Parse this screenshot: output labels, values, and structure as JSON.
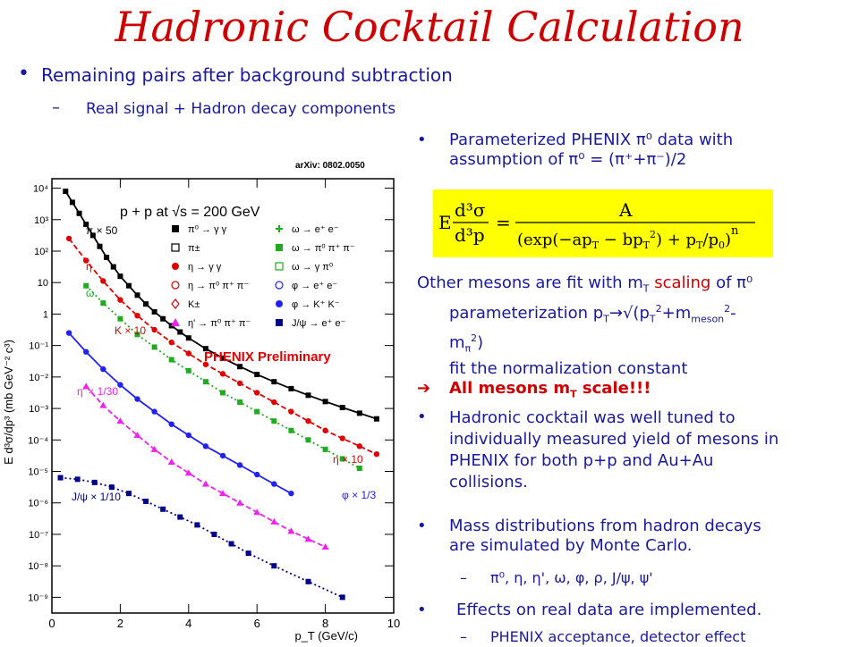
{
  "title": "Hadronic Cocktail Calculation",
  "bullets": {
    "b1": "Remaining pairs after background subtraction",
    "b1a": "Real signal + Hadron decay components",
    "r1_line1": "Parameterized PHENIX π⁰ data with",
    "r1_line2": "assumption of π⁰ = (π⁺+π⁻)/2",
    "r2_line1": "Other mesons are fit with m",
    "r2_line1_sub": "T",
    "r2_line1_b": " scaling",
    "r2_line1_c": " of π⁰",
    "r2_line2": "parameterization  p",
    "r2_line2_sub": "T",
    "r2_line2_b": "→√(p",
    "r2_line2_sub2": "T",
    "r2_line2_sup": "2",
    "r2_line2_c": "+m",
    "r2_line2_sub3": "meson",
    "r2_line2_sup2": "2",
    "r2_line2_d": "-",
    "r2_line3": "m",
    "r2_line3_sub": "π",
    "r2_line3_sup": "2",
    "r2_line3_b": ")",
    "r2_line4": "fit the normalization constant",
    "r3": "All mesons m",
    "r3_sub": "T",
    "r3_b": " scale!!!",
    "r4_line1": "Hadronic cocktail was well tuned to",
    "r4_line2": "individually measured yield of mesons in",
    "r4_line3": "PHENIX for both p+p and Au+Au",
    "r4_line4": "collisions.",
    "r5_line1": "Mass distributions from hadron decays",
    "r5_line2": "are simulated by Monte Carlo.",
    "r5a": "π⁰, η, η', ω, φ, ρ, J/ψ, ψ'",
    "r6": "Effects on real data are implemented.",
    "r6a": "PHENIX acceptance, detector effect"
  },
  "formula": {
    "lhs_num": "d³σ",
    "lhs_den": "d³p",
    "lhs_prefix": "E",
    "eq": "=",
    "rhs_num": "A",
    "rhs_den": "(exp(−ap",
    "rhs_den_sub": "T",
    "rhs_den_b": " − bp",
    "rhs_den_sub2": "T",
    "rhs_den_sup": "2",
    "rhs_den_c": ") + p",
    "rhs_den_sub3": "T",
    "rhs_den_d": "/p",
    "rhs_den_sub4": "0",
    "rhs_den_e": ")",
    "rhs_exp": "n"
  },
  "arxiv": "arXiv: 0802.0050",
  "chart_data": {
    "type": "scatter",
    "title": "p + p at √s = 200 GeV",
    "xlabel": "p_T (GeV/c)",
    "ylabel": "E d³σ/dp³ (mb GeV⁻² c³)",
    "xlim": [
      0,
      10
    ],
    "ylim_log10": [
      -9.5,
      4.3
    ],
    "log_y": true,
    "x_ticks": [
      "0",
      "2",
      "4",
      "6",
      "8",
      "10"
    ],
    "y_ticks": [
      "10⁴",
      "10³",
      "10²",
      "10",
      "1",
      "10⁻¹",
      "10⁻²",
      "10⁻³",
      "10⁻⁴",
      "10⁻⁵",
      "10⁻⁶",
      "10⁻⁷",
      "10⁻⁸",
      "10⁻⁹"
    ],
    "watermark": "PHENIX Preliminary",
    "legend": [
      {
        "label": "π⁰ → γ γ",
        "marker": "square-filled",
        "color": "#000000"
      },
      {
        "label": "π±",
        "marker": "square-open",
        "color": "#000000"
      },
      {
        "label": "η → γ γ",
        "marker": "circle-filled",
        "color": "#e00000"
      },
      {
        "label": "η → π⁰ π⁺ π⁻",
        "marker": "circle-open",
        "color": "#e00000"
      },
      {
        "label": "K±",
        "marker": "diamond-open",
        "color": "#e00000"
      },
      {
        "label": "η' → π⁰ π⁺ π⁻",
        "marker": "triangle-filled",
        "color": "#ee22ee"
      },
      {
        "label": "ω → e⁺ e⁻",
        "marker": "cross-open",
        "color": "#22aa22"
      },
      {
        "label": "ω → π⁰ π⁺ π⁻",
        "marker": "square-filled",
        "color": "#22aa22"
      },
      {
        "label": "ω → γ π⁰",
        "marker": "square-open",
        "color": "#22aa22"
      },
      {
        "label": "φ → e⁺ e⁻",
        "marker": "circle-open",
        "color": "#2222ee"
      },
      {
        "label": "φ → K⁺ K⁻",
        "marker": "circle-filled",
        "color": "#2222ee"
      },
      {
        "label": "J/ψ → e⁺ e⁻",
        "marker": "square-filled",
        "color": "#000088"
      }
    ],
    "curve_labels": [
      {
        "text": "π × 50",
        "color": "#000000"
      },
      {
        "text": "η",
        "color": "#e00000"
      },
      {
        "text": "ω",
        "color": "#22aa22"
      },
      {
        "text": "K × 10",
        "color": "#e00000"
      },
      {
        "text": "η' × 1/30",
        "color": "#ee22ee"
      },
      {
        "text": "η × 10",
        "color": "#e00000"
      },
      {
        "text": "J/ψ × 1/10",
        "color": "#000088"
      },
      {
        "text": "φ × 1/3",
        "color": "#2222ee"
      }
    ],
    "series": [
      {
        "name": "π × 50",
        "color": "#000000",
        "style": "solid",
        "marker": "square-filled",
        "x": [
          0.4,
          0.6,
          0.8,
          1.0,
          1.2,
          1.4,
          1.6,
          1.8,
          2.0,
          2.25,
          2.5,
          2.75,
          3.0,
          3.25,
          3.5,
          3.75,
          4.0,
          4.5,
          5.0,
          5.5,
          6.0,
          6.5,
          7.0,
          7.5,
          8.0,
          8.5,
          9.0,
          9.5
        ],
        "log10y": [
          3.9,
          3.55,
          3.2,
          2.85,
          2.5,
          2.15,
          1.8,
          1.5,
          1.2,
          0.9,
          0.6,
          0.32,
          0.07,
          -0.15,
          -0.37,
          -0.57,
          -0.76,
          -1.1,
          -1.4,
          -1.67,
          -1.92,
          -2.15,
          -2.37,
          -2.58,
          -2.78,
          -2.97,
          -3.15,
          -3.33
        ]
      },
      {
        "name": "η",
        "color": "#e00000",
        "style": "dashed",
        "marker": "circle-filled",
        "x": [
          0.5,
          1.0,
          1.5,
          2.0,
          2.5,
          3.0,
          3.5,
          4.0,
          4.5,
          5.0,
          5.5,
          6.0,
          6.5,
          7.0,
          7.5,
          8.0,
          8.5,
          9.0,
          9.5
        ],
        "log10y": [
          2.4,
          1.7,
          1.05,
          0.45,
          -0.05,
          -0.5,
          -0.9,
          -1.25,
          -1.6,
          -1.9,
          -2.2,
          -2.5,
          -2.8,
          -3.1,
          -3.4,
          -3.7,
          -3.95,
          -4.2,
          -4.45
        ]
      },
      {
        "name": "ω",
        "color": "#22aa22",
        "style": "dotted",
        "marker": "square-filled",
        "x": [
          1.0,
          1.5,
          2.0,
          2.5,
          3.0,
          3.5,
          4.0,
          4.5,
          5.0,
          5.5,
          6.0,
          6.5,
          7.0,
          7.5,
          8.0,
          8.5,
          9.0
        ],
        "log10y": [
          0.9,
          0.35,
          -0.15,
          -0.65,
          -1.05,
          -1.45,
          -1.8,
          -2.15,
          -2.5,
          -2.8,
          -3.1,
          -3.4,
          -3.7,
          -4.0,
          -4.3,
          -4.6,
          -4.9
        ]
      },
      {
        "name": "φ × 1/3",
        "color": "#2222ee",
        "style": "solid",
        "marker": "circle-filled",
        "x": [
          0.5,
          1.0,
          1.5,
          2.0,
          2.5,
          3.0,
          3.5,
          4.0,
          4.5,
          5.0,
          5.5,
          6.0,
          6.5,
          7.0
        ],
        "log10y": [
          -0.6,
          -1.2,
          -1.75,
          -2.25,
          -2.7,
          -3.1,
          -3.5,
          -3.85,
          -4.2,
          -4.5,
          -4.8,
          -5.1,
          -5.4,
          -5.7
        ]
      },
      {
        "name": "η' × 1/30",
        "color": "#ee22ee",
        "style": "dashed",
        "marker": "triangle-filled",
        "x": [
          1.0,
          1.5,
          2.0,
          2.5,
          3.0,
          3.5,
          4.0,
          4.5,
          5.0,
          5.5,
          6.0,
          6.5,
          7.0,
          7.5,
          8.0
        ],
        "log10y": [
          -2.3,
          -2.9,
          -3.4,
          -3.85,
          -4.3,
          -4.7,
          -5.05,
          -5.4,
          -5.7,
          -6.0,
          -6.3,
          -6.6,
          -6.9,
          -7.15,
          -7.4
        ]
      },
      {
        "name": "J/ψ × 1/10",
        "color": "#000088",
        "style": "dotted",
        "marker": "square-filled",
        "x": [
          0.25,
          0.75,
          1.25,
          1.75,
          2.25,
          2.75,
          3.25,
          3.75,
          4.25,
          4.75,
          5.25,
          5.75,
          6.5,
          7.5,
          8.5
        ],
        "log10y": [
          -5.2,
          -5.25,
          -5.35,
          -5.5,
          -5.7,
          -5.95,
          -6.2,
          -6.45,
          -6.7,
          -7.0,
          -7.3,
          -7.6,
          -8.0,
          -8.5,
          -9.0
        ]
      }
    ]
  }
}
